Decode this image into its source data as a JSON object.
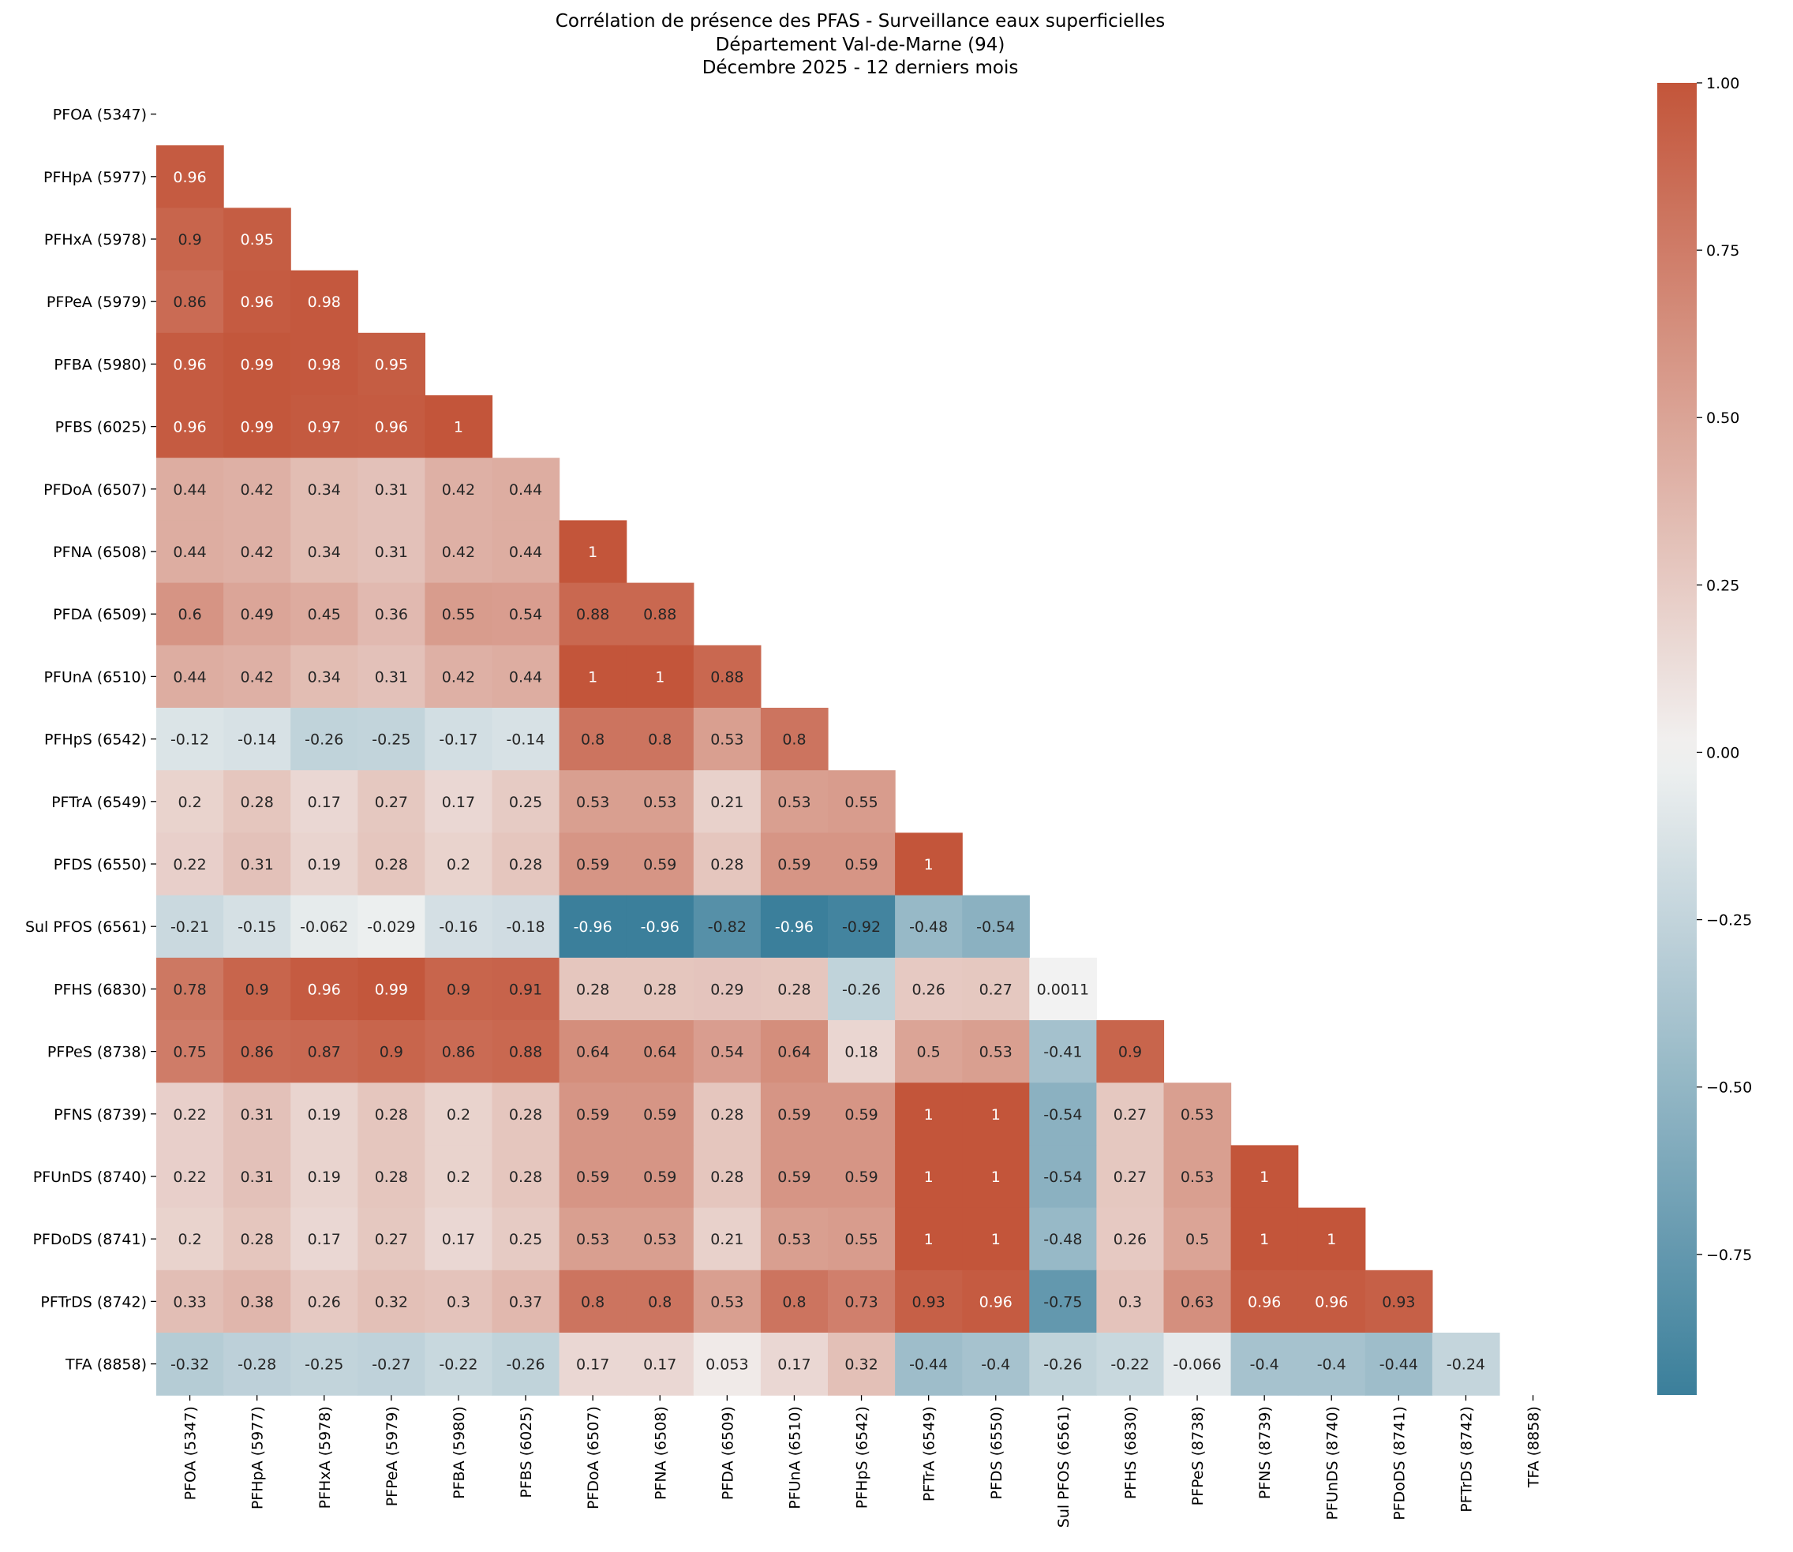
{
  "chart_data": {
    "type": "heatmap",
    "title": [
      "Corrélation de présence des PFAS - Surveillance eaux superficielles",
      "Département Val-de-Marne (94)",
      "Décembre 2025 - 12 derniers mois"
    ],
    "mask": "upper-triangle-including-diagonal",
    "labels": [
      "PFOA (5347)",
      "PFHpA (5977)",
      "PFHxA (5978)",
      "PFPeA (5979)",
      "PFBA (5980)",
      "PFBS (6025)",
      "PFDoA (6507)",
      "PFNA (6508)",
      "PFDA (6509)",
      "PFUnA (6510)",
      "PFHpS (6542)",
      "PFTrA (6549)",
      "PFDS (6550)",
      "Sul PFOS (6561)",
      "PFHS (6830)",
      "PFPeS (8738)",
      "PFNS (8739)",
      "PFUnDS (8740)",
      "PFDoDS (8741)",
      "PFTrDS (8742)",
      "TFA (8858)"
    ],
    "cells": [
      [],
      [
        "0.96"
      ],
      [
        "0.9",
        "0.95"
      ],
      [
        "0.86",
        "0.96",
        "0.98"
      ],
      [
        "0.96",
        "0.99",
        "0.98",
        "0.95"
      ],
      [
        "0.96",
        "0.99",
        "0.97",
        "0.96",
        "1"
      ],
      [
        "0.44",
        "0.42",
        "0.34",
        "0.31",
        "0.42",
        "0.44"
      ],
      [
        "0.44",
        "0.42",
        "0.34",
        "0.31",
        "0.42",
        "0.44",
        "1"
      ],
      [
        "0.6",
        "0.49",
        "0.45",
        "0.36",
        "0.55",
        "0.54",
        "0.88",
        "0.88"
      ],
      [
        "0.44",
        "0.42",
        "0.34",
        "0.31",
        "0.42",
        "0.44",
        "1",
        "1",
        "0.88"
      ],
      [
        "-0.12",
        "-0.14",
        "-0.26",
        "-0.25",
        "-0.17",
        "-0.14",
        "0.8",
        "0.8",
        "0.53",
        "0.8"
      ],
      [
        "0.2",
        "0.28",
        "0.17",
        "0.27",
        "0.17",
        "0.25",
        "0.53",
        "0.53",
        "0.21",
        "0.53",
        "0.55"
      ],
      [
        "0.22",
        "0.31",
        "0.19",
        "0.28",
        "0.2",
        "0.28",
        "0.59",
        "0.59",
        "0.28",
        "0.59",
        "0.59",
        "1"
      ],
      [
        "-0.21",
        "-0.15",
        "-0.062",
        "-0.029",
        "-0.16",
        "-0.18",
        "-0.96",
        "-0.96",
        "-0.82",
        "-0.96",
        "-0.92",
        "-0.48",
        "-0.54"
      ],
      [
        "0.78",
        "0.9",
        "0.96",
        "0.99",
        "0.9",
        "0.91",
        "0.28",
        "0.28",
        "0.29",
        "0.28",
        "-0.26",
        "0.26",
        "0.27",
        "0.0011"
      ],
      [
        "0.75",
        "0.86",
        "0.87",
        "0.9",
        "0.86",
        "0.88",
        "0.64",
        "0.64",
        "0.54",
        "0.64",
        "0.18",
        "0.5",
        "0.53",
        "-0.41",
        "0.9"
      ],
      [
        "0.22",
        "0.31",
        "0.19",
        "0.28",
        "0.2",
        "0.28",
        "0.59",
        "0.59",
        "0.28",
        "0.59",
        "0.59",
        "1",
        "1",
        "-0.54",
        "0.27",
        "0.53"
      ],
      [
        "0.22",
        "0.31",
        "0.19",
        "0.28",
        "0.2",
        "0.28",
        "0.59",
        "0.59",
        "0.28",
        "0.59",
        "0.59",
        "1",
        "1",
        "-0.54",
        "0.27",
        "0.53",
        "1"
      ],
      [
        "0.2",
        "0.28",
        "0.17",
        "0.27",
        "0.17",
        "0.25",
        "0.53",
        "0.53",
        "0.21",
        "0.53",
        "0.55",
        "1",
        "1",
        "-0.48",
        "0.26",
        "0.5",
        "1",
        "1"
      ],
      [
        "0.33",
        "0.38",
        "0.26",
        "0.32",
        "0.3",
        "0.37",
        "0.8",
        "0.8",
        "0.53",
        "0.8",
        "0.73",
        "0.93",
        "0.96",
        "-0.75",
        "0.3",
        "0.63",
        "0.96",
        "0.96",
        "0.93"
      ],
      [
        "-0.32",
        "-0.28",
        "-0.25",
        "-0.27",
        "-0.22",
        "-0.26",
        "0.17",
        "0.17",
        "0.053",
        "0.17",
        "0.32",
        "-0.44",
        "-0.4",
        "-0.26",
        "-0.22",
        "-0.066",
        "-0.4",
        "-0.4",
        "-0.44",
        "-0.24"
      ]
    ],
    "colorbar": {
      "vmin": -0.96,
      "vmax": 1.0,
      "ticks": [
        "1.00",
        "0.75",
        "0.50",
        "0.25",
        "0.00",
        "−0.25",
        "−0.50",
        "−0.75"
      ],
      "tick_values": [
        1.0,
        0.75,
        0.5,
        0.25,
        0.0,
        -0.25,
        -0.5,
        -0.75
      ],
      "colormap": "diverging blue-white-red"
    },
    "colors": {
      "negative": "#3b7f9b",
      "neutral": "#f2f2f2",
      "positive": "#c3553a"
    }
  }
}
